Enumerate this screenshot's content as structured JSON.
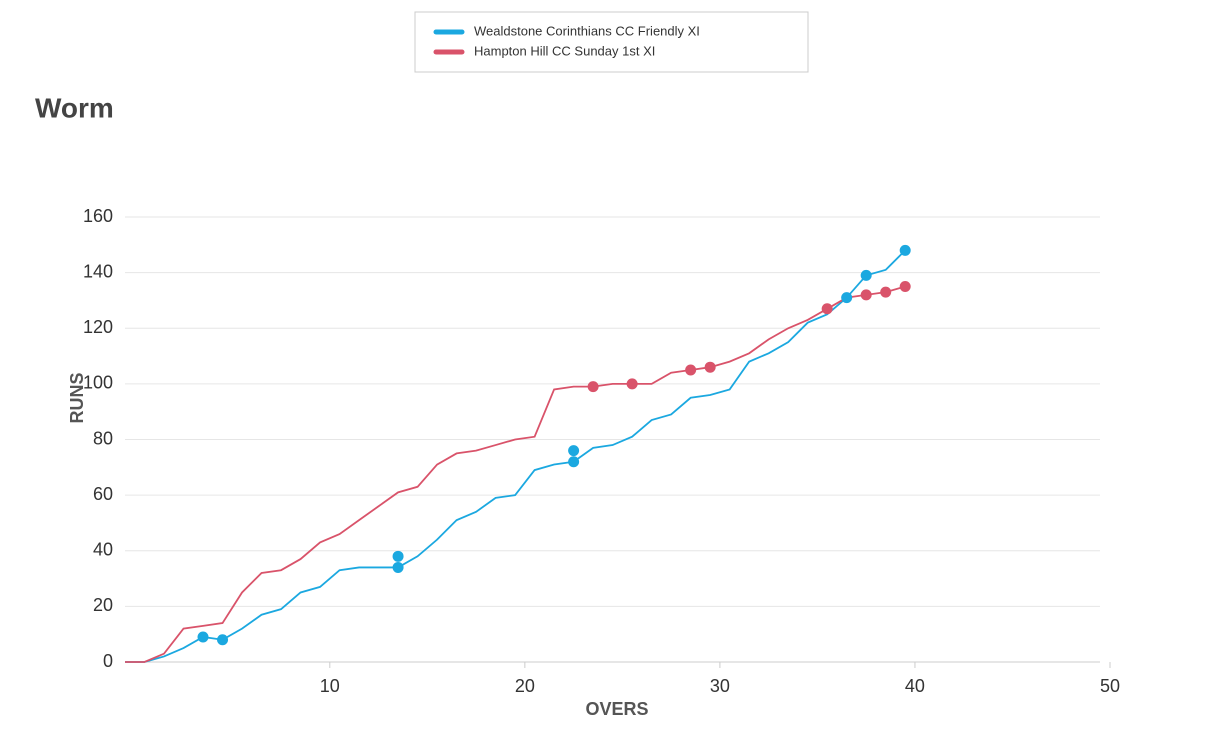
{
  "chart_data": {
    "type": "line",
    "title": "Worm",
    "x_label": "OVERS",
    "y_label": "RUNS",
    "x": [
      -0.5,
      0.5,
      1.5,
      2.5,
      3.5,
      4.5,
      5.5,
      6.5,
      7.5,
      8.5,
      9.5,
      10.5,
      11.5,
      12.5,
      13.5,
      14.5,
      15.5,
      16.5,
      17.5,
      18.5,
      19.5,
      20.5,
      21.5,
      22.5,
      23.5,
      24.5,
      25.5,
      26.5,
      27.5,
      28.5,
      29.5,
      30.5,
      31.5,
      32.5,
      33.5,
      34.5,
      35.5,
      36.5,
      37.5,
      38.5,
      39.5
    ],
    "series": [
      {
        "name": "Wealdstone Corinthians CC Friendly XI",
        "color": "#1ba8e0",
        "values": [
          0,
          0,
          2,
          5,
          9,
          8,
          12,
          17,
          19,
          25,
          27,
          33,
          34,
          34,
          34,
          38,
          44,
          51,
          54,
          59,
          60,
          69,
          71,
          72,
          77,
          78,
          81,
          87,
          89,
          95,
          96,
          98,
          108,
          111,
          115,
          122,
          125,
          131,
          139,
          141,
          148
        ],
        "wickets": {
          "x": [
            3.5,
            4.5,
            13.5,
            13.5,
            22.5,
            22.5,
            36.5,
            37.5,
            39.5
          ],
          "values": [
            9,
            8,
            38,
            34,
            76,
            72,
            131,
            139,
            148
          ]
        }
      },
      {
        "name": "Hampton Hill CC Sunday 1st XI",
        "color": "#d9536a",
        "values": [
          0,
          0,
          3,
          12,
          13,
          14,
          25,
          32,
          33,
          37,
          43,
          46,
          51,
          56,
          61,
          63,
          71,
          75,
          76,
          78,
          80,
          81,
          98,
          99,
          99,
          100,
          100,
          100,
          104,
          105,
          106,
          108,
          111,
          116,
          120,
          123,
          127,
          131,
          132,
          133,
          135
        ],
        "wickets": {
          "x": [
            23.5,
            25.5,
            28.5,
            29.5,
            35.5,
            37.5,
            38.5,
            39.5
          ],
          "values": [
            99,
            100,
            105,
            106,
            127,
            132,
            133,
            135
          ]
        }
      }
    ],
    "xlim": [
      -0.5,
      50
    ],
    "xticks": [
      10,
      20,
      30,
      40,
      50
    ],
    "ylim": [
      0,
      160
    ],
    "yticks": [
      0,
      20,
      40,
      60,
      80,
      100,
      120,
      140,
      160
    ],
    "grid": true
  }
}
